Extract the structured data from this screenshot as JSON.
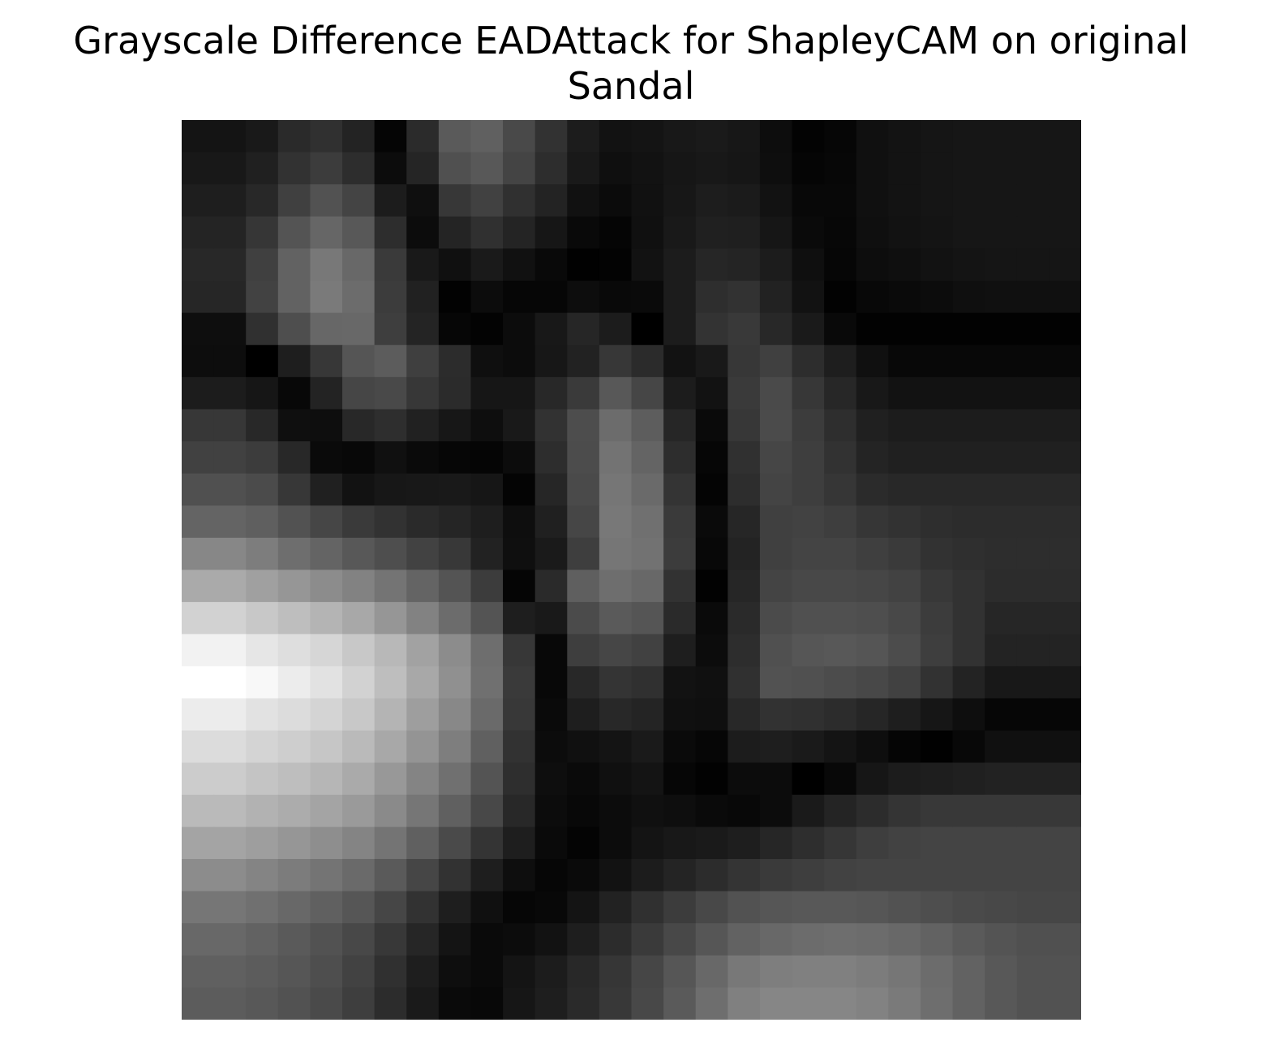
{
  "chart_data": {
    "type": "heatmap",
    "title_line1": "Grayscale Difference EADAttack for ShapleyCAM on original",
    "title_line2": "Sandal",
    "colormap": "gray",
    "axes": "off",
    "rows": 28,
    "cols": 28,
    "values": [
      [
        20,
        20,
        25,
        42,
        48,
        35,
        5,
        43,
        90,
        96,
        73,
        50,
        28,
        18,
        20,
        24,
        26,
        23,
        13,
        3,
        6,
        16,
        19,
        21,
        22,
        22,
        22,
        22
      ],
      [
        24,
        24,
        32,
        50,
        60,
        45,
        12,
        37,
        80,
        88,
        68,
        45,
        25,
        15,
        18,
        22,
        24,
        22,
        14,
        5,
        7,
        16,
        19,
        21,
        22,
        22,
        22,
        22
      ],
      [
        30,
        30,
        40,
        64,
        82,
        68,
        28,
        15,
        55,
        65,
        48,
        35,
        17,
        11,
        17,
        23,
        29,
        27,
        18,
        8,
        8,
        16,
        19,
        21,
        22,
        22,
        22,
        22
      ],
      [
        36,
        36,
        54,
        84,
        102,
        88,
        45,
        12,
        36,
        48,
        36,
        22,
        9,
        5,
        16,
        25,
        32,
        31,
        22,
        10,
        7,
        15,
        18,
        20,
        22,
        22,
        22,
        22
      ],
      [
        40,
        40,
        64,
        98,
        120,
        104,
        58,
        25,
        16,
        26,
        17,
        9,
        1,
        3,
        18,
        28,
        38,
        36,
        28,
        15,
        6,
        13,
        15,
        18,
        20,
        21,
        21,
        21
      ],
      [
        38,
        38,
        66,
        98,
        122,
        108,
        60,
        33,
        2,
        12,
        6,
        6,
        13,
        9,
        10,
        28,
        46,
        50,
        34,
        18,
        2,
        8,
        10,
        12,
        15,
        16,
        16,
        16
      ],
      [
        14,
        14,
        48,
        78,
        103,
        104,
        62,
        36,
        6,
        3,
        12,
        24,
        38,
        28,
        0,
        28,
        51,
        57,
        40,
        26,
        9,
        2,
        2,
        2,
        2,
        2,
        2,
        2
      ],
      [
        13,
        13,
        0,
        30,
        55,
        85,
        92,
        63,
        44,
        15,
        12,
        23,
        34,
        55,
        43,
        18,
        25,
        55,
        64,
        45,
        30,
        16,
        8,
        8,
        8,
        8,
        8,
        8
      ],
      [
        28,
        28,
        22,
        8,
        35,
        70,
        73,
        55,
        43,
        22,
        22,
        40,
        58,
        88,
        70,
        28,
        18,
        58,
        74,
        55,
        39,
        24,
        18,
        18,
        18,
        18,
        18,
        18
      ],
      [
        55,
        55,
        40,
        15,
        14,
        40,
        46,
        33,
        23,
        14,
        25,
        50,
        77,
        108,
        93,
        38,
        10,
        55,
        75,
        60,
        46,
        32,
        28,
        28,
        28,
        28,
        28,
        28
      ],
      [
        65,
        65,
        60,
        40,
        10,
        8,
        16,
        10,
        6,
        5,
        12,
        45,
        76,
        115,
        100,
        45,
        6,
        48,
        70,
        62,
        50,
        36,
        32,
        32,
        32,
        32,
        32,
        32
      ],
      [
        80,
        80,
        75,
        55,
        32,
        18,
        23,
        24,
        25,
        22,
        4,
        38,
        74,
        118,
        106,
        52,
        4,
        45,
        68,
        62,
        54,
        43,
        40,
        40,
        40,
        40,
        40,
        40
      ],
      [
        100,
        100,
        95,
        82,
        70,
        58,
        50,
        42,
        37,
        30,
        14,
        32,
        70,
        120,
        112,
        58,
        10,
        38,
        64,
        66,
        62,
        54,
        50,
        46,
        44,
        44,
        44,
        44
      ],
      [
        135,
        135,
        125,
        110,
        100,
        88,
        78,
        66,
        56,
        34,
        15,
        26,
        62,
        118,
        114,
        60,
        8,
        35,
        64,
        68,
        68,
        63,
        58,
        50,
        47,
        45,
        45,
        45
      ],
      [
        170,
        170,
        160,
        150,
        140,
        130,
        116,
        100,
        84,
        60,
        5,
        42,
        95,
        110,
        104,
        50,
        2,
        38,
        68,
        72,
        72,
        70,
        66,
        56,
        50,
        44,
        44,
        44
      ],
      [
        210,
        210,
        200,
        190,
        180,
        168,
        150,
        130,
        108,
        84,
        30,
        25,
        75,
        90,
        85,
        42,
        10,
        42,
        75,
        80,
        80,
        78,
        72,
        60,
        50,
        38,
        38,
        38
      ],
      [
        242,
        242,
        230,
        222,
        214,
        200,
        184,
        162,
        140,
        110,
        55,
        8,
        62,
        70,
        65,
        30,
        12,
        45,
        80,
        86,
        88,
        85,
        76,
        62,
        50,
        35,
        35,
        35
      ],
      [
        255,
        255,
        248,
        236,
        226,
        210,
        190,
        168,
        144,
        112,
        58,
        8,
        40,
        52,
        48,
        18,
        16,
        48,
        82,
        80,
        76,
        72,
        65,
        50,
        35,
        24,
        24,
        24
      ],
      [
        236,
        236,
        226,
        220,
        212,
        200,
        180,
        158,
        136,
        106,
        56,
        10,
        30,
        40,
        36,
        16,
        15,
        40,
        50,
        48,
        44,
        38,
        30,
        22,
        14,
        6,
        6,
        6
      ],
      [
        220,
        220,
        212,
        206,
        198,
        186,
        168,
        148,
        126,
        96,
        50,
        12,
        16,
        20,
        26,
        10,
        6,
        28,
        30,
        26,
        20,
        14,
        5,
        1,
        8,
        16,
        16,
        16
      ],
      [
        204,
        204,
        196,
        190,
        182,
        170,
        152,
        132,
        112,
        84,
        46,
        14,
        10,
        16,
        20,
        6,
        2,
        12,
        12,
        0,
        8,
        22,
        28,
        30,
        32,
        34,
        34,
        34
      ],
      [
        186,
        186,
        178,
        172,
        164,
        154,
        138,
        118,
        96,
        72,
        40,
        12,
        8,
        12,
        16,
        14,
        10,
        8,
        12,
        26,
        36,
        44,
        52,
        56,
        56,
        56,
        56,
        56
      ],
      [
        164,
        164,
        158,
        150,
        142,
        132,
        116,
        96,
        74,
        52,
        30,
        10,
        4,
        12,
        20,
        24,
        26,
        30,
        38,
        46,
        54,
        62,
        66,
        68,
        68,
        68,
        68,
        68
      ],
      [
        140,
        140,
        132,
        124,
        116,
        106,
        90,
        70,
        50,
        30,
        14,
        6,
        10,
        18,
        28,
        36,
        44,
        52,
        58,
        62,
        66,
        68,
        68,
        68,
        68,
        68,
        68,
        68
      ],
      [
        118,
        118,
        112,
        104,
        96,
        86,
        70,
        50,
        30,
        16,
        6,
        8,
        20,
        34,
        48,
        60,
        72,
        82,
        86,
        88,
        88,
        86,
        82,
        78,
        74,
        72,
        70,
        70
      ],
      [
        104,
        104,
        98,
        90,
        82,
        72,
        56,
        38,
        20,
        10,
        12,
        18,
        30,
        44,
        58,
        72,
        86,
        98,
        104,
        108,
        110,
        108,
        104,
        98,
        90,
        84,
        80,
        80
      ],
      [
        96,
        96,
        92,
        86,
        78,
        66,
        48,
        30,
        14,
        10,
        20,
        28,
        40,
        54,
        70,
        86,
        104,
        120,
        126,
        128,
        128,
        124,
        118,
        108,
        98,
        88,
        82,
        82
      ],
      [
        92,
        92,
        88,
        82,
        74,
        62,
        44,
        26,
        10,
        8,
        22,
        30,
        42,
        56,
        72,
        90,
        110,
        128,
        134,
        134,
        134,
        130,
        122,
        110,
        98,
        88,
        82,
        82
      ]
    ]
  }
}
